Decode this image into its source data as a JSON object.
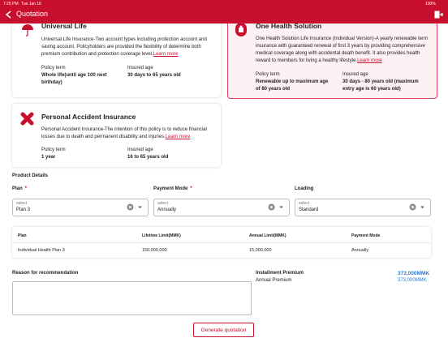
{
  "status_bar": {
    "time": "7:25 PM",
    "date": "Tue Jan 16",
    "battery": "100%"
  },
  "header": {
    "title": "Quotation"
  },
  "products": [
    {
      "title": "Universal Life",
      "description": "Universal Life Insurance-Two account types including protection account and saving account. Policyholders are provided the flexibility of determine both premium contribution and protection coverage level.",
      "link": "Learn more",
      "policy_term_label": "Policy term",
      "policy_term": "Whole life(until age 100 next birthday)",
      "insured_age_label": "Insured age",
      "insured_age": "30 days to 65 years old"
    },
    {
      "title": "One Health Solution",
      "description": "One Health Solution Life Insurance (Individual Version)-A yearly renewable term insurance with guaranteed renewal of first 3 years by providing comprehensive medical coverage along with accidental death benefit. It also provides health reward to members for living a healthy lifestyle.",
      "link": "Learn more",
      "policy_term_label": "Policy term",
      "policy_term": "Renewable up to maximum age of 80 years old",
      "insured_age_label": "Insured age",
      "insured_age": "30 days - 80 years old (maximum entry age is 60 years old)"
    },
    {
      "title": "Personal Accident Insurance",
      "description": "Personal Accident Insurance-The intention of this policy is to reduce financial losses due to death and permanent disability and injuries.",
      "link": "Learn more",
      "policy_term_label": "Policy term",
      "policy_term": "1 year",
      "insured_age_label": "Insured age",
      "insured_age": "16 to 65 years old"
    }
  ],
  "product_details": {
    "title": "Product Details",
    "fields": [
      {
        "label": "Plan",
        "required": "*",
        "placeholder": "select",
        "value": "Plan 3"
      },
      {
        "label": "Payment Mode",
        "required": "*",
        "placeholder": "select",
        "value": "Annually"
      },
      {
        "label": "Loading",
        "placeholder": "select",
        "value": "Standard"
      }
    ]
  },
  "table": {
    "columns": [
      "Plan",
      "Lifetime Limit(MMK)",
      "Annual Limit(MMK)",
      "Payment Mode"
    ],
    "rows": [
      [
        "Individual Health Plan 3",
        "150,000,000",
        "15,000,000",
        "Annually"
      ]
    ]
  },
  "reason": {
    "label": "Reason for recommendation"
  },
  "premium": {
    "installment_label": "Installment Premium",
    "installment": "373,000MMK",
    "annual_label": "Annual Premium",
    "annual": "373,000MMK"
  },
  "button": {
    "label": "Generate quotation"
  }
}
